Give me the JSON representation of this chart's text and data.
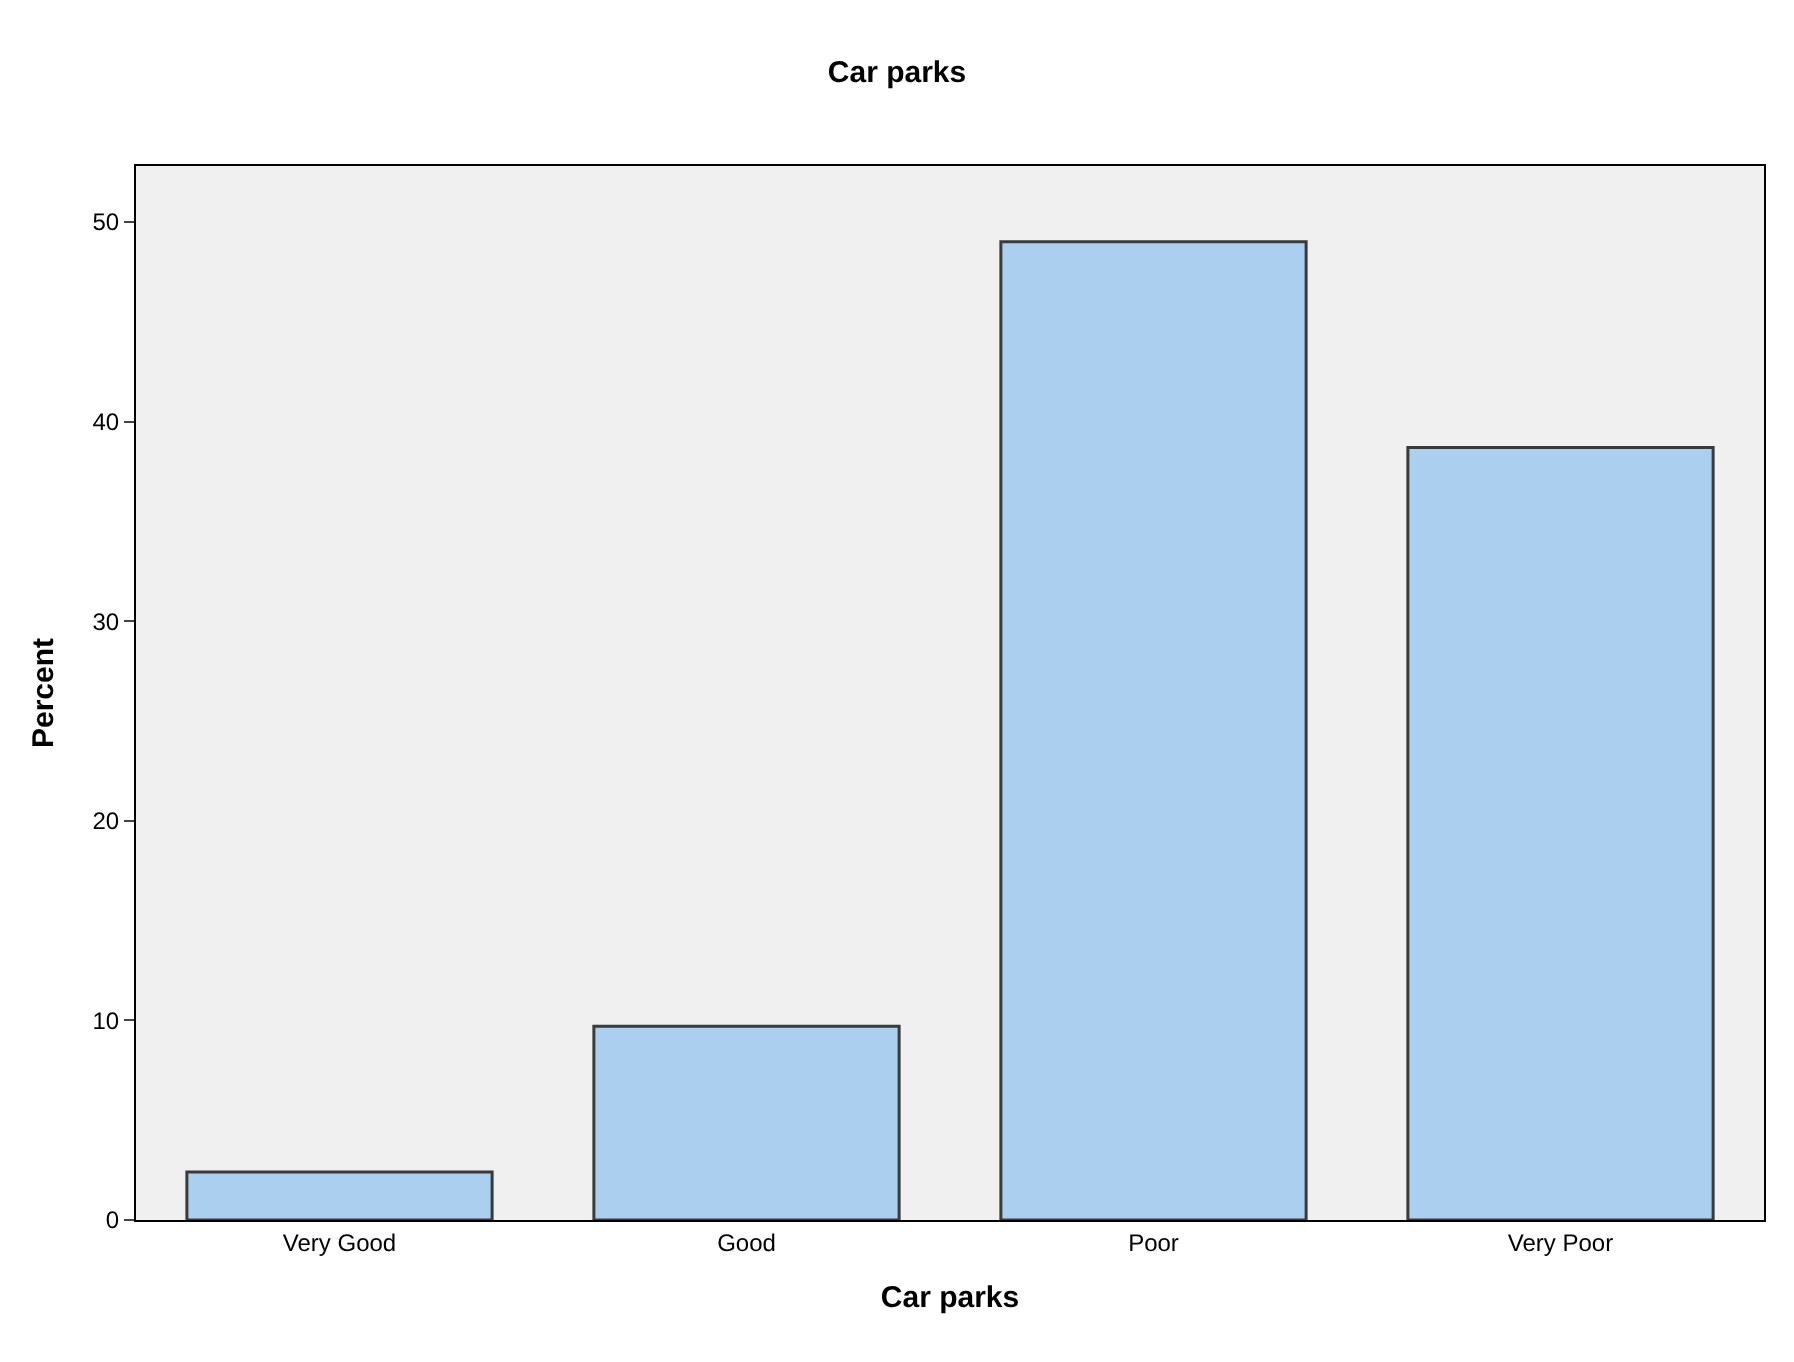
{
  "chart_data": {
    "type": "bar",
    "title": "Car parks",
    "xlabel": "Car parks",
    "ylabel": "Percent",
    "categories": [
      "Very Good",
      "Good",
      "Poor",
      "Very Poor"
    ],
    "values": [
      2.4,
      9.7,
      49.0,
      38.7
    ],
    "color": "#abcfee",
    "ylim": [
      0,
      52.8
    ],
    "yticks": [
      0,
      10,
      20,
      30,
      40,
      50
    ],
    "grid": false,
    "legend": false
  }
}
